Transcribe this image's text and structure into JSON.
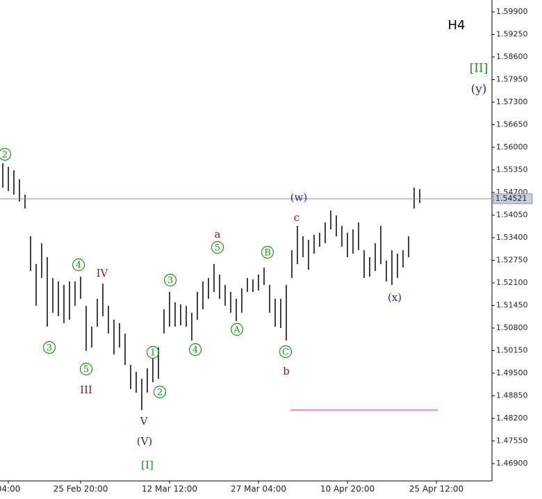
{
  "chart_data": {
    "type": "ohlc",
    "title": "H4",
    "color": "#000000",
    "categories": [
      null,
      "04:00",
      null,
      null,
      null,
      null,
      null,
      null,
      null,
      null,
      null,
      null,
      null,
      null,
      "25 Feb 20:00",
      null,
      null,
      null,
      null,
      null,
      null,
      null,
      null,
      null,
      null,
      null,
      null,
      null,
      null,
      null,
      "12 Mar 12:00",
      null,
      null,
      null,
      null,
      null,
      null,
      null,
      null,
      null,
      null,
      null,
      null,
      null,
      null,
      null,
      "27 Mar 04:00",
      null,
      null,
      null,
      null,
      null,
      null,
      null,
      null,
      null,
      null,
      null,
      null,
      null,
      null,
      null,
      "10 Apr 20:00",
      null,
      null,
      null,
      null,
      null,
      null,
      null,
      null,
      null,
      null,
      null,
      null,
      null,
      null,
      null,
      "25 Apr 12:00"
    ],
    "high": [
      1.5554,
      1.5544,
      1.5534,
      1.5508,
      1.5464,
      1.5344,
      1.5264,
      1.5324,
      1.5284,
      1.5224,
      1.5214,
      1.5204,
      1.5214,
      1.5214,
      1.5228,
      1.5144,
      1.5084,
      1.5164,
      1.5208,
      1.5144,
      1.5104,
      1.5094,
      1.5064,
      1.4974,
      1.4954,
      1.4934,
      1.4964,
      1.4994,
      1.5024,
      1.5134,
      1.5184,
      1.5154,
      1.5148,
      1.5144,
      1.5124,
      1.5184,
      1.5214,
      1.5224,
      1.5264,
      1.5234,
      1.5204,
      1.5184,
      1.5164,
      1.5194,
      1.5224,
      1.522,
      1.5234,
      1.5254,
      1.5204,
      1.5164,
      1.5164,
      1.5204,
      1.5304,
      1.5374,
      1.5344,
      1.5334,
      1.5348,
      1.5354,
      1.5384,
      1.5418,
      1.5404,
      1.5374,
      1.5354,
      1.5364,
      1.5384,
      1.5304,
      1.5284,
      1.5324,
      1.5374,
      1.5274,
      1.5304,
      1.5294,
      1.5304,
      1.5344,
      1.5484,
      1.548,
      null,
      null,
      null
    ],
    "low": [
      1.5484,
      1.5474,
      1.5464,
      1.5444,
      1.5424,
      1.5244,
      1.5144,
      1.5224,
      1.5084,
      1.5124,
      1.5114,
      1.5094,
      1.5104,
      1.5144,
      1.5164,
      1.5014,
      1.5024,
      1.5084,
      1.5114,
      1.5064,
      1.5004,
      1.5024,
      1.4974,
      1.4904,
      1.4894,
      1.4844,
      1.4894,
      1.4924,
      1.4934,
      1.5064,
      1.5084,
      1.5084,
      1.5088,
      1.5084,
      1.5044,
      1.5104,
      1.5134,
      1.5164,
      1.5184,
      1.5164,
      1.5144,
      1.5124,
      1.51,
      1.5124,
      1.5184,
      1.5184,
      1.5188,
      1.5204,
      1.5124,
      1.5084,
      1.508,
      1.5044,
      1.5224,
      1.5264,
      1.5284,
      1.5248,
      1.5294,
      1.5314,
      1.5324,
      1.5364,
      1.5344,
      1.5314,
      1.5284,
      1.5294,
      1.5304,
      1.5224,
      1.5228,
      1.5244,
      1.5264,
      1.5214,
      1.5204,
      1.5224,
      1.5254,
      1.5284,
      1.5424,
      1.544,
      null,
      null,
      null
    ],
    "ylim": [
      1.464,
      1.6024
    ],
    "yticks": [
      {
        "value": 1.599,
        "label": "1.59900"
      },
      {
        "value": 1.5925,
        "label": "1.59250"
      },
      {
        "value": 1.586,
        "label": "1.58600"
      },
      {
        "value": 1.5795,
        "label": "1.57950"
      },
      {
        "value": 1.573,
        "label": "1.57300"
      },
      {
        "value": 1.5665,
        "label": "1.56650"
      },
      {
        "value": 1.56,
        "label": "1.56000"
      },
      {
        "value": 1.5535,
        "label": "1.55350"
      },
      {
        "value": 1.547,
        "label": "1.54700"
      },
      {
        "value": 1.5405,
        "label": "1.54050"
      },
      {
        "value": 1.534,
        "label": "1.53400"
      },
      {
        "value": 1.5275,
        "label": "1.52750"
      },
      {
        "value": 1.521,
        "label": "1.52100"
      },
      {
        "value": 1.5145,
        "label": "1.51450"
      },
      {
        "value": 1.508,
        "label": "1.50800"
      },
      {
        "value": 1.5015,
        "label": "1.50150"
      },
      {
        "value": 1.495,
        "label": "1.49500"
      },
      {
        "value": 1.4885,
        "label": "1.48850"
      },
      {
        "value": 1.482,
        "label": "1.48200"
      },
      {
        "value": 1.4755,
        "label": "1.47550"
      },
      {
        "value": 1.469,
        "label": "1.46900"
      }
    ],
    "current_price": 1.54521,
    "current_price_color": "#7f8fb0",
    "level": 1.4844,
    "level_color": "#e040e0",
    "annotations": [
      {
        "text": "2",
        "color": "#1f8a1f"
      },
      {
        "text": "3",
        "color": "#1f8a1f"
      },
      {
        "text": "4",
        "color": "#1f8a1f"
      },
      {
        "text": "5",
        "color": "#1f8a1f"
      },
      {
        "text": "IV",
        "color": "#8b1a1a"
      },
      {
        "text": "III",
        "color": "#8b1a1a"
      },
      {
        "text": "V",
        "color": "#8b1a1a"
      },
      {
        "text": "(V)",
        "color": "#2a2a80"
      },
      {
        "text": "[I]",
        "color": "#1f8a1f"
      },
      {
        "text": "1",
        "color": "#1f8a1f"
      },
      {
        "text": "2",
        "color": "#1f8a1f"
      },
      {
        "text": "3",
        "color": "#1f8a1f"
      },
      {
        "text": "4",
        "color": "#1f8a1f"
      },
      {
        "text": "5",
        "color": "#1f8a1f"
      },
      {
        "text": "a",
        "color": "#8b1a1a"
      },
      {
        "text": "A",
        "color": "#1f8a1f"
      },
      {
        "text": "B",
        "color": "#1f8a1f"
      },
      {
        "text": "C",
        "color": "#1f8a1f"
      },
      {
        "text": "b",
        "color": "#8b1a1a"
      },
      {
        "text": "c",
        "color": "#8b1a1a"
      },
      {
        "text": "(w)",
        "color": "#2a2a80"
      },
      {
        "text": "(x)",
        "color": "#2a2a80"
      },
      {
        "text": "[II]",
        "color": "#1f8a1f"
      },
      {
        "text": "(y)",
        "color": "#2a2a80"
      }
    ]
  }
}
